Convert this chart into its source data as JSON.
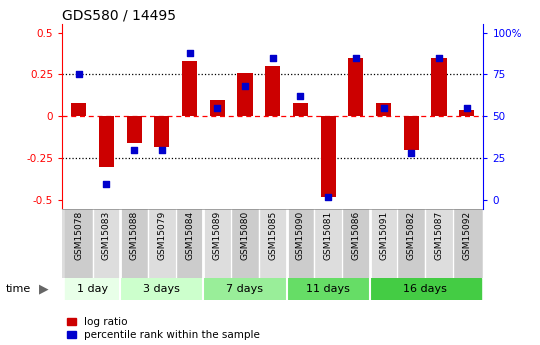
{
  "title": "GDS580 / 14495",
  "samples": [
    "GSM15078",
    "GSM15083",
    "GSM15088",
    "GSM15079",
    "GSM15084",
    "GSM15089",
    "GSM15080",
    "GSM15085",
    "GSM15090",
    "GSM15081",
    "GSM15086",
    "GSM15091",
    "GSM15082",
    "GSM15087",
    "GSM15092"
  ],
  "log_ratio": [
    0.08,
    -0.3,
    -0.16,
    -0.18,
    0.33,
    0.1,
    0.26,
    0.3,
    0.08,
    -0.48,
    0.35,
    0.08,
    -0.2,
    0.35,
    0.04
  ],
  "percentile": [
    75,
    10,
    30,
    30,
    88,
    55,
    68,
    85,
    62,
    2,
    85,
    55,
    28,
    85,
    55
  ],
  "groups": [
    {
      "label": "1 day",
      "start": 0,
      "end": 2,
      "color": "#e8ffe8"
    },
    {
      "label": "3 days",
      "start": 2,
      "end": 5,
      "color": "#ccffcc"
    },
    {
      "label": "7 days",
      "start": 5,
      "end": 8,
      "color": "#99ee99"
    },
    {
      "label": "11 days",
      "start": 8,
      "end": 11,
      "color": "#66dd66"
    },
    {
      "label": "16 days",
      "start": 11,
      "end": 15,
      "color": "#44cc44"
    }
  ],
  "bar_color": "#cc0000",
  "dot_color": "#0000cc",
  "ylim": [
    -0.55,
    0.55
  ],
  "legend_labels": [
    "log ratio",
    "percentile rank within the sample"
  ],
  "sample_bg_even": "#cccccc",
  "sample_bg_odd": "#dddddd"
}
